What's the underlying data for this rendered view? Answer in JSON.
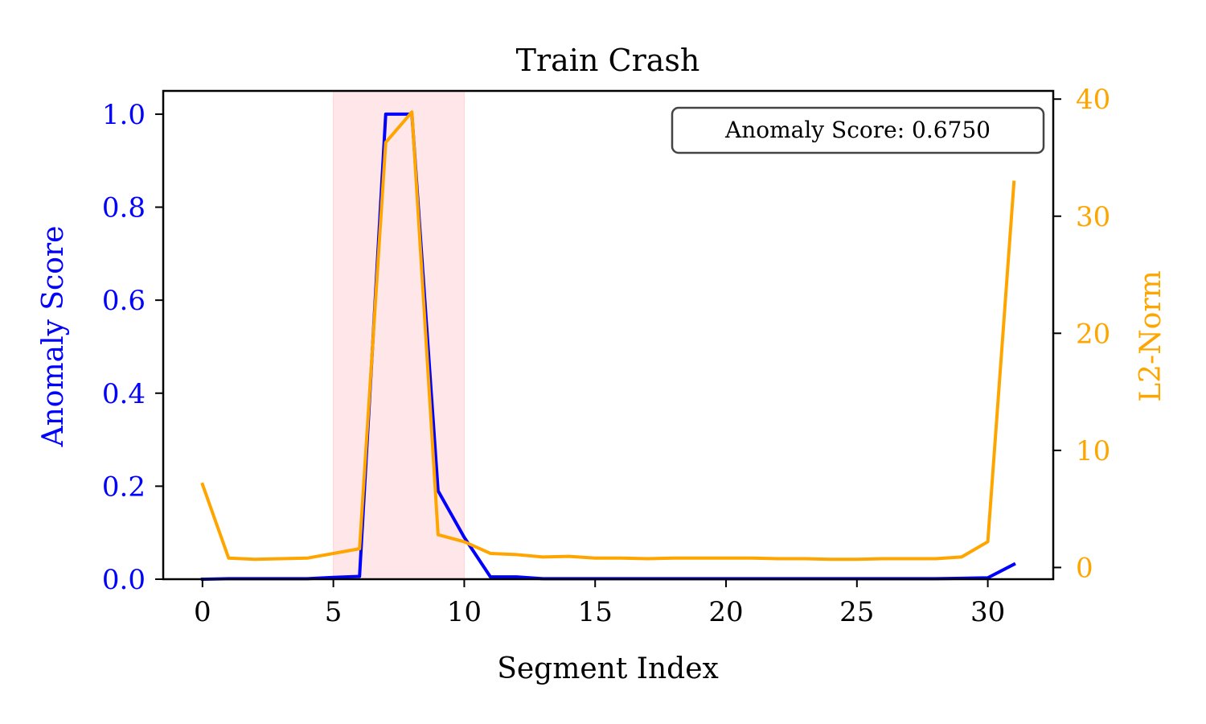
{
  "chart_data": {
    "type": "line",
    "title": "Train Crash",
    "xlabel": "Segment Index",
    "ylabel_left": "Anomaly Score",
    "ylabel_right": "L2-Norm",
    "xlim": [
      -1.5,
      32.5
    ],
    "ylim_left": [
      0,
      1.05
    ],
    "ylim_right": [
      -1,
      40.7
    ],
    "x_ticks": [
      0,
      5,
      10,
      15,
      20,
      25,
      30
    ],
    "y_left_ticks": [
      0.0,
      0.2,
      0.4,
      0.6,
      0.8,
      1.0
    ],
    "y_right_ticks": [
      0,
      10,
      20,
      30,
      40
    ],
    "highlight_span": {
      "x": [
        5,
        10
      ],
      "color": "#ffe6e8"
    },
    "annotation": "Anomaly Score: 0.6750",
    "legend": "none",
    "grid": false,
    "series": [
      {
        "axis": "left",
        "color": "#0000ff",
        "x": [
          0,
          1,
          2,
          3,
          4,
          5,
          6,
          7,
          8,
          9,
          10,
          11,
          12,
          13,
          14,
          15,
          16,
          17,
          18,
          19,
          20,
          21,
          22,
          23,
          24,
          25,
          26,
          27,
          28,
          29,
          30,
          31
        ],
        "values": [
          0.0,
          0.001,
          0.001,
          0.001,
          0.001,
          0.004,
          0.006,
          1.0,
          1.0,
          0.19,
          0.09,
          0.005,
          0.005,
          0.001,
          0.001,
          0.001,
          0.001,
          0.001,
          0.001,
          0.001,
          0.001,
          0.001,
          0.001,
          0.001,
          0.001,
          0.001,
          0.001,
          0.001,
          0.001,
          0.002,
          0.003,
          0.032
        ]
      },
      {
        "axis": "right",
        "color": "#ffa500",
        "x": [
          0,
          1,
          2,
          3,
          4,
          5,
          6,
          7,
          8,
          9,
          10,
          11,
          12,
          13,
          14,
          15,
          16,
          17,
          18,
          19,
          20,
          21,
          22,
          23,
          24,
          25,
          26,
          27,
          28,
          29,
          30,
          31
        ],
        "values": [
          7.1,
          0.8,
          0.7,
          0.75,
          0.8,
          1.2,
          1.6,
          36.3,
          38.9,
          2.8,
          2.2,
          1.2,
          1.1,
          0.9,
          0.95,
          0.8,
          0.8,
          0.75,
          0.8,
          0.8,
          0.8,
          0.8,
          0.75,
          0.75,
          0.7,
          0.7,
          0.75,
          0.75,
          0.75,
          0.9,
          2.2,
          32.9
        ]
      }
    ]
  }
}
